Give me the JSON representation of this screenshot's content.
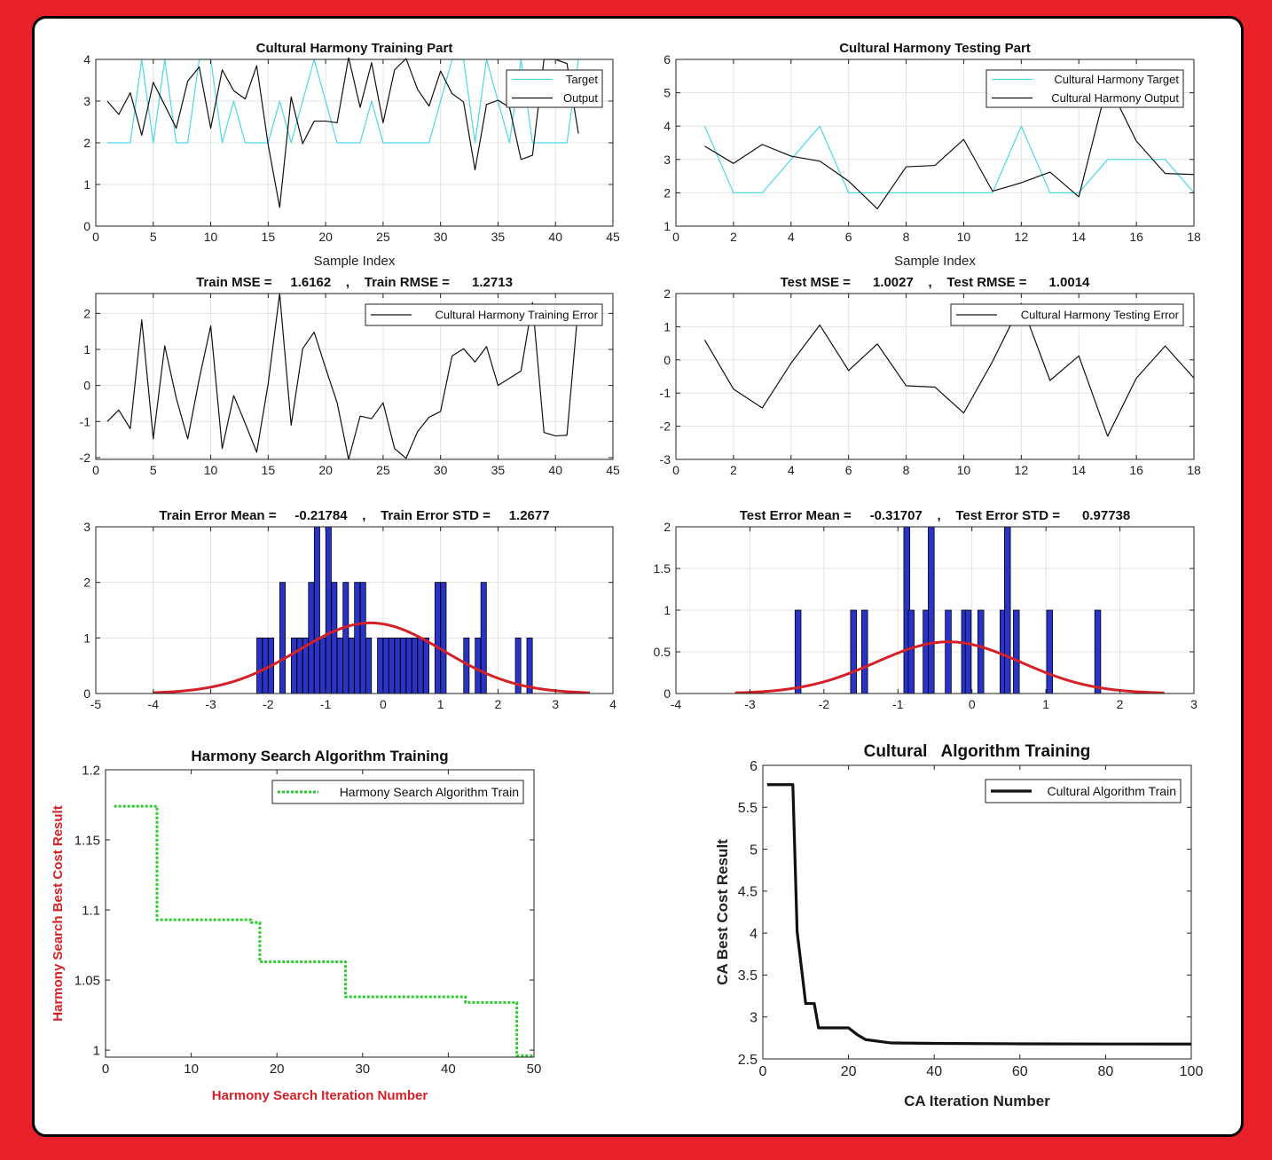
{
  "chart_data": [
    {
      "type": "line",
      "title": "Cultural Harmony Training Part",
      "xlabel": "Sample Index",
      "ylabel": "",
      "xlim": [
        0,
        45
      ],
      "ylim": [
        0,
        4
      ],
      "xticks": [
        "0",
        "5",
        "10",
        "15",
        "20",
        "25",
        "30",
        "35",
        "40",
        "45"
      ],
      "yticks": [
        "0",
        "1",
        "2",
        "3",
        "4"
      ],
      "grid": true,
      "legend_position": "top-right",
      "x": [
        1,
        2,
        3,
        4,
        5,
        6,
        7,
        8,
        9,
        10,
        11,
        12,
        13,
        14,
        15,
        16,
        17,
        18,
        19,
        20,
        21,
        22,
        23,
        24,
        25,
        26,
        27,
        28,
        29,
        30,
        31,
        32,
        33,
        34,
        35,
        36,
        37,
        38,
        39,
        40,
        41,
        42
      ],
      "series": [
        {
          "name": "Target",
          "color": "#4dd8e6",
          "values": [
            2,
            2,
            2,
            4,
            2,
            4,
            2,
            2,
            4,
            4,
            2,
            3,
            2,
            2,
            2,
            3,
            2,
            3,
            4,
            3,
            2,
            2,
            2,
            3,
            2,
            2,
            2,
            2,
            2,
            3,
            4,
            4,
            2,
            4,
            3,
            2,
            4,
            2,
            2,
            2,
            2,
            4
          ]
        },
        {
          "name": "Output",
          "color": "#111111",
          "values": [
            3.0,
            2.68,
            3.2,
            2.18,
            3.45,
            2.9,
            2.35,
            3.48,
            3.82,
            2.35,
            3.75,
            3.25,
            3.05,
            3.85,
            1.95,
            0.45,
            3.1,
            1.98,
            2.52,
            2.52,
            2.48,
            4.05,
            2.85,
            3.92,
            2.48,
            3.75,
            4.02,
            3.28,
            2.88,
            3.72,
            3.18,
            2.98,
            1.35,
            2.92,
            3.02,
            2.85,
            1.6,
            1.7,
            4.0,
            4.0,
            3.9,
            2.22
          ]
        }
      ]
    },
    {
      "type": "line",
      "title": "Cultural Harmony Testing Part",
      "xlabel": "Sample Index",
      "ylabel": "",
      "xlim": [
        0,
        18
      ],
      "ylim": [
        1,
        6
      ],
      "xticks": [
        "0",
        "2",
        "4",
        "6",
        "8",
        "10",
        "12",
        "14",
        "16",
        "18"
      ],
      "yticks": [
        "1",
        "2",
        "3",
        "4",
        "5",
        "6"
      ],
      "grid": true,
      "legend_position": "top-right",
      "x": [
        1,
        2,
        3,
        4,
        5,
        6,
        7,
        8,
        9,
        10,
        11,
        12,
        13,
        14,
        15,
        16,
        17,
        18
      ],
      "series": [
        {
          "name": "Cultural Harmony Target",
          "color": "#4dd8e6",
          "values": [
            4,
            2,
            2,
            3,
            4,
            2,
            2,
            2,
            2,
            2,
            2,
            4,
            2,
            2,
            3,
            3,
            3,
            2
          ]
        },
        {
          "name": "Cultural Harmony Output",
          "color": "#111111",
          "values": [
            3.4,
            2.88,
            3.45,
            3.1,
            2.95,
            2.35,
            1.52,
            2.78,
            2.82,
            3.6,
            2.05,
            2.3,
            2.62,
            1.88,
            5.3,
            3.55,
            2.58,
            2.55
          ]
        }
      ]
    },
    {
      "type": "line",
      "title": "Train MSE =     1.6162    ,    Train RMSE =      1.2713",
      "xlabel": "",
      "ylabel": "",
      "xlim": [
        0,
        45
      ],
      "ylim": [
        -2.05,
        2.55
      ],
      "xticks": [
        "0",
        "5",
        "10",
        "15",
        "20",
        "25",
        "30",
        "35",
        "40",
        "45"
      ],
      "yticks": [
        "-2",
        "-1",
        "0",
        "1",
        "2"
      ],
      "grid": true,
      "legend_position": "top-right",
      "x": [
        1,
        2,
        3,
        4,
        5,
        6,
        7,
        8,
        9,
        10,
        11,
        12,
        13,
        14,
        15,
        16,
        17,
        18,
        19,
        20,
        21,
        22,
        23,
        24,
        25,
        26,
        27,
        28,
        29,
        30,
        31,
        32,
        33,
        34,
        35,
        36,
        37,
        38,
        39,
        40,
        41,
        42
      ],
      "series": [
        {
          "name": "Cultural Harmony Training Error",
          "color": "#111111",
          "values": [
            -1.0,
            -0.68,
            -1.2,
            1.82,
            -1.48,
            1.1,
            -0.35,
            -1.48,
            0.18,
            1.65,
            -1.75,
            -0.28,
            -1.05,
            -1.85,
            0.05,
            2.55,
            -1.1,
            1.02,
            1.48,
            0.48,
            -0.48,
            -2.05,
            -0.85,
            -0.92,
            -0.48,
            -1.75,
            -2.02,
            -1.28,
            -0.88,
            -0.72,
            0.82,
            1.02,
            0.65,
            1.08,
            0.0,
            0.2,
            0.4,
            2.3,
            -1.3,
            -1.4,
            -1.38,
            2.25
          ]
        }
      ]
    },
    {
      "type": "line",
      "title": "Test MSE =      1.0027    ,    Test RMSE =      1.0014",
      "xlabel": "",
      "ylabel": "",
      "xlim": [
        0,
        18
      ],
      "ylim": [
        -3,
        2
      ],
      "xticks": [
        "0",
        "2",
        "4",
        "6",
        "8",
        "10",
        "12",
        "14",
        "16",
        "18"
      ],
      "yticks": [
        "-3",
        "-2",
        "-1",
        "0",
        "1",
        "2"
      ],
      "grid": true,
      "legend_position": "top-right",
      "x": [
        1,
        2,
        3,
        4,
        5,
        6,
        7,
        8,
        9,
        10,
        11,
        12,
        13,
        14,
        15,
        16,
        17,
        18
      ],
      "series": [
        {
          "name": "Cultural Harmony Testing Error",
          "color": "#111111",
          "values": [
            0.6,
            -0.88,
            -1.45,
            -0.1,
            1.05,
            -0.32,
            0.48,
            -0.78,
            -0.82,
            -1.6,
            -0.05,
            1.7,
            -0.62,
            0.12,
            -2.3,
            -0.55,
            0.42,
            -0.55
          ]
        }
      ]
    },
    {
      "type": "bar",
      "title": "Train Error Mean =     -0.21784    ,    Train Error STD =     1.2677",
      "xlabel": "",
      "ylabel": "",
      "xlim": [
        -5,
        4
      ],
      "ylim": [
        0,
        3
      ],
      "xticks": [
        "-5",
        "-4",
        "-3",
        "-2",
        "-1",
        "0",
        "1",
        "2",
        "3",
        "4"
      ],
      "yticks": [
        "0",
        "1",
        "2",
        "3"
      ],
      "grid": true,
      "bar_color": "#2a33c7",
      "bar_width": 0.095,
      "bins": [
        -2.15,
        -2.05,
        -1.95,
        -1.75,
        -1.55,
        -1.45,
        -1.35,
        -1.25,
        -1.15,
        -1.05,
        -0.95,
        -0.85,
        -0.75,
        -0.65,
        -0.55,
        -0.45,
        -0.35,
        -0.25,
        -0.05,
        0.05,
        0.15,
        0.25,
        0.35,
        0.45,
        0.55,
        0.65,
        0.75,
        0.95,
        1.05,
        1.45,
        1.65,
        1.75,
        2.35,
        2.55
      ],
      "values": [
        1,
        1,
        1,
        2,
        1,
        1,
        1,
        2,
        3,
        1,
        3,
        2,
        1,
        2,
        1,
        2,
        2,
        1,
        1,
        1,
        1,
        1,
        1,
        1,
        1,
        1,
        1,
        2,
        2,
        1,
        1,
        2,
        1,
        1
      ],
      "fit_curve": {
        "type": "normal",
        "color": "#d62027",
        "mean": -0.21784,
        "std": 1.2677,
        "peak": 1.27,
        "range": [
          -4.0,
          3.6
        ]
      }
    },
    {
      "type": "bar",
      "title": "Test Error Mean =     -0.31707    ,    Test Error STD =      0.97738",
      "xlabel": "",
      "ylabel": "",
      "xlim": [
        -4,
        3
      ],
      "ylim": [
        0,
        2
      ],
      "xticks": [
        "-4",
        "-3",
        "-2",
        "-1",
        "0",
        "1",
        "2",
        "3"
      ],
      "yticks": [
        "0",
        "0.5",
        "1",
        "1.5",
        "2"
      ],
      "grid": true,
      "bar_color": "#2a33c7",
      "bar_width": 0.08,
      "bins": [
        -2.35,
        -1.6,
        -1.45,
        -0.88,
        -0.82,
        -0.62,
        -0.55,
        -0.32,
        -0.1,
        -0.05,
        0.12,
        0.42,
        0.48,
        0.6,
        1.05,
        1.7
      ],
      "values": [
        1,
        1,
        1,
        2,
        1,
        1,
        2,
        1,
        1,
        1,
        1,
        1,
        2,
        1,
        1,
        1
      ],
      "fit_curve": {
        "type": "normal",
        "color": "#d62027",
        "mean": -0.31707,
        "std": 0.97738,
        "peak": 0.62,
        "range": [
          -3.2,
          2.6
        ]
      }
    },
    {
      "type": "line",
      "title": "Harmony Search Algorithm Training",
      "xlabel": "Harmony Search Iteration Number",
      "ylabel": "Harmony Search Best Cost Result",
      "label_color": "#d62027",
      "xlim": [
        0,
        50
      ],
      "ylim": [
        0.995,
        1.2
      ],
      "xticks": [
        "0",
        "10",
        "20",
        "30",
        "40",
        "50"
      ],
      "yticks": [
        "1",
        "1.05",
        "1.1",
        "1.15",
        "1.2"
      ],
      "ytick_values": [
        1,
        1.05,
        1.1,
        1.15,
        1.2
      ],
      "grid": false,
      "legend_position": "top-right",
      "step": true,
      "x": [
        1,
        5,
        6,
        13,
        17,
        18,
        27,
        28,
        41,
        42,
        48,
        50
      ],
      "series": [
        {
          "name": "Harmony Search Algorithm Train",
          "color": "#2ecc2e",
          "dash": true,
          "values": [
            1.174,
            1.174,
            1.093,
            1.093,
            1.091,
            1.063,
            1.063,
            1.038,
            1.038,
            1.034,
            0.996,
            0.996
          ]
        }
      ]
    },
    {
      "type": "line",
      "title": "Cultural   Algorithm Training",
      "xlabel": "CA Iteration Number",
      "ylabel": "CA Best Cost Result",
      "xlim": [
        0,
        100
      ],
      "ylim": [
        2.5,
        6
      ],
      "xticks": [
        "0",
        "20",
        "40",
        "60",
        "80",
        "100"
      ],
      "yticks": [
        "2.5",
        "3",
        "3.5",
        "4",
        "4.5",
        "5",
        "5.5",
        "6"
      ],
      "grid": false,
      "legend_position": "top-right",
      "x": [
        1,
        7,
        8,
        10,
        12,
        13,
        20,
        22,
        24,
        30,
        40,
        60,
        80,
        100
      ],
      "series": [
        {
          "name": "Cultural Algorithm Train",
          "color": "#111111",
          "values": [
            5.77,
            5.77,
            4.02,
            3.16,
            3.16,
            2.87,
            2.87,
            2.79,
            2.73,
            2.69,
            2.685,
            2.68,
            2.678,
            2.677
          ]
        }
      ]
    }
  ]
}
